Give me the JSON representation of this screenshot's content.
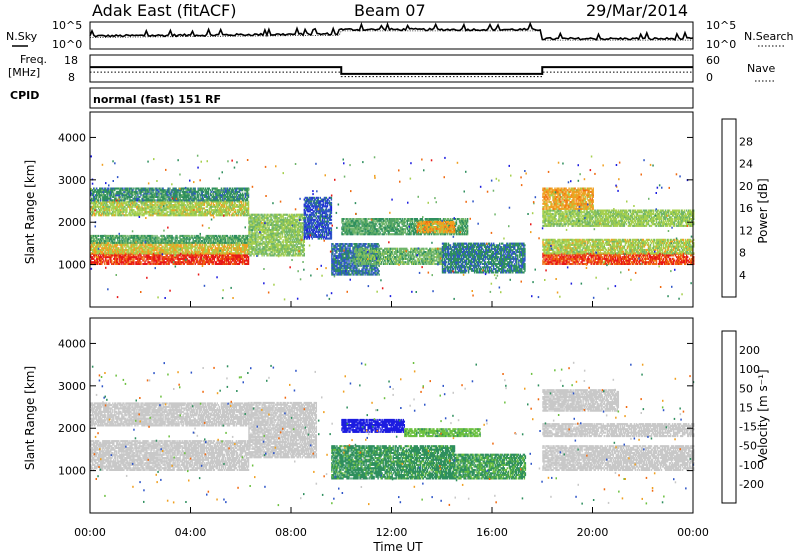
{
  "header": {
    "station": "Adak East (fitACF)",
    "beam": "Beam 07",
    "date": "29/Mar/2014"
  },
  "noise_panel": {
    "left_label": "N.Sky",
    "right_label": "N.Search",
    "left_ticks": [
      "10^5",
      "10^0"
    ],
    "right_ticks": [
      "10^5",
      "10^0"
    ]
  },
  "freq_panel": {
    "left_label_1": "Freq.",
    "left_label_2": "[MHz]",
    "right_label": "Nave",
    "left_ticks": [
      "18",
      "8"
    ],
    "right_ticks": [
      "60",
      "0"
    ],
    "freq_segments": [
      {
        "t0": 0,
        "t1": 10,
        "mhz": 13.5
      },
      {
        "t0": 10,
        "t1": 18,
        "mhz": 11.0
      },
      {
        "t0": 18,
        "t1": 24,
        "mhz": 13.5
      }
    ],
    "nave_segments": [
      {
        "t0": 0,
        "t1": 10,
        "n": 22
      },
      {
        "t0": 10,
        "t1": 18,
        "n": 12
      },
      {
        "t0": 18,
        "t1": 24,
        "n": 22
      }
    ]
  },
  "cpid": {
    "label": "CPID",
    "text": "normal (fast) 151 RF"
  },
  "chart_data": [
    {
      "type": "heatmap",
      "quantity": "power",
      "ylabel": "Slant Range [km]",
      "ylim": [
        0,
        4600
      ],
      "xlim": [
        0,
        24
      ],
      "yticks": [
        "1000",
        "2000",
        "3000",
        "4000"
      ],
      "colorbar": {
        "label": "Power [dB]",
        "ticks": [
          "4",
          "8",
          "12",
          "16",
          "20",
          "24",
          "28"
        ]
      },
      "bands": [
        {
          "t0": 0.0,
          "t1": 6.3,
          "r0": 1000,
          "r1": 1250,
          "v": 29
        },
        {
          "t0": 0.0,
          "t1": 6.3,
          "r0": 1250,
          "r1": 1500,
          "v": 20
        },
        {
          "t0": 0.0,
          "t1": 6.3,
          "r0": 1500,
          "r1": 1700,
          "v": 12
        },
        {
          "t0": 0.0,
          "t1": 6.3,
          "r0": 2150,
          "r1": 2500,
          "v": 18
        },
        {
          "t0": 0.0,
          "t1": 6.3,
          "r0": 2500,
          "r1": 2800,
          "v": 10
        },
        {
          "t0": 6.3,
          "t1": 8.5,
          "r0": 1200,
          "r1": 2200,
          "v": 16
        },
        {
          "t0": 8.5,
          "t1": 9.6,
          "r0": 1600,
          "r1": 2600,
          "v": 6
        },
        {
          "t0": 9.6,
          "t1": 11.5,
          "r0": 750,
          "r1": 1500,
          "v": 8
        },
        {
          "t0": 10.5,
          "t1": 14.0,
          "r0": 1000,
          "r1": 1400,
          "v": 14
        },
        {
          "t0": 10.0,
          "t1": 15.0,
          "r0": 1700,
          "r1": 2100,
          "v": 12
        },
        {
          "t0": 13.0,
          "t1": 14.5,
          "r0": 1750,
          "r1": 2000,
          "v": 22
        },
        {
          "t0": 14.0,
          "t1": 17.3,
          "r0": 800,
          "r1": 1500,
          "v": 9
        },
        {
          "t0": 18.0,
          "t1": 24.0,
          "r0": 1000,
          "r1": 1250,
          "v": 28
        },
        {
          "t0": 18.0,
          "t1": 24.0,
          "r0": 1250,
          "r1": 1600,
          "v": 18
        },
        {
          "t0": 18.0,
          "t1": 24.0,
          "r0": 1900,
          "r1": 2300,
          "v": 17
        },
        {
          "t0": 18.0,
          "t1": 20.0,
          "r0": 2300,
          "r1": 2800,
          "v": 22
        }
      ]
    },
    {
      "type": "heatmap",
      "quantity": "velocity",
      "ylabel": "Slant Range [km]",
      "xlabel": "Time UT",
      "ylim": [
        0,
        4600
      ],
      "xlim": [
        0,
        24
      ],
      "yticks": [
        "1000",
        "2000",
        "3000",
        "4000"
      ],
      "xticks": [
        "00:00",
        "04:00",
        "08:00",
        "12:00",
        "16:00",
        "20:00",
        "00:00"
      ],
      "colorbar": {
        "label": "Velocity [m s⁻¹]",
        "ticks": [
          "200",
          "100",
          "50",
          "15",
          "-15",
          "-50",
          "-100",
          "-200"
        ]
      },
      "bands": [
        {
          "t0": 0.0,
          "t1": 6.3,
          "r0": 1000,
          "r1": 1700,
          "v": 0
        },
        {
          "t0": 0.0,
          "t1": 6.3,
          "r0": 2050,
          "r1": 2600,
          "v": 0
        },
        {
          "t0": 6.3,
          "t1": 9.0,
          "r0": 1300,
          "r1": 2600,
          "v": 0
        },
        {
          "t0": 9.6,
          "t1": 14.5,
          "r0": 800,
          "r1": 1600,
          "v": 60
        },
        {
          "t0": 14.5,
          "t1": 17.3,
          "r0": 800,
          "r1": 1400,
          "v": 55
        },
        {
          "t0": 10.0,
          "t1": 12.5,
          "r0": 1900,
          "r1": 2200,
          "v": 220
        },
        {
          "t0": 12.5,
          "t1": 15.5,
          "r0": 1800,
          "r1": 2000,
          "v": 40
        },
        {
          "t0": 18.0,
          "t1": 24.0,
          "r0": 1000,
          "r1": 1600,
          "v": 0
        },
        {
          "t0": 18.0,
          "t1": 24.0,
          "r0": 1800,
          "r1": 2100,
          "v": 0
        },
        {
          "t0": 18.0,
          "t1": 21.0,
          "r0": 2400,
          "r1": 2900,
          "v": 0
        }
      ]
    }
  ],
  "colors": {
    "power": [
      "#1c1ce0",
      "#2e55c8",
      "#2f8f5e",
      "#6fb56a",
      "#a6d04e",
      "#f0a020",
      "#f06a10",
      "#e81818"
    ],
    "velocity": [
      "#e81818",
      "#f06a10",
      "#f0a020",
      "#c8c8c8",
      "#c8c8c8",
      "#6cc040",
      "#2f8f5e",
      "#2e55c8",
      "#1c1ce0"
    ]
  }
}
